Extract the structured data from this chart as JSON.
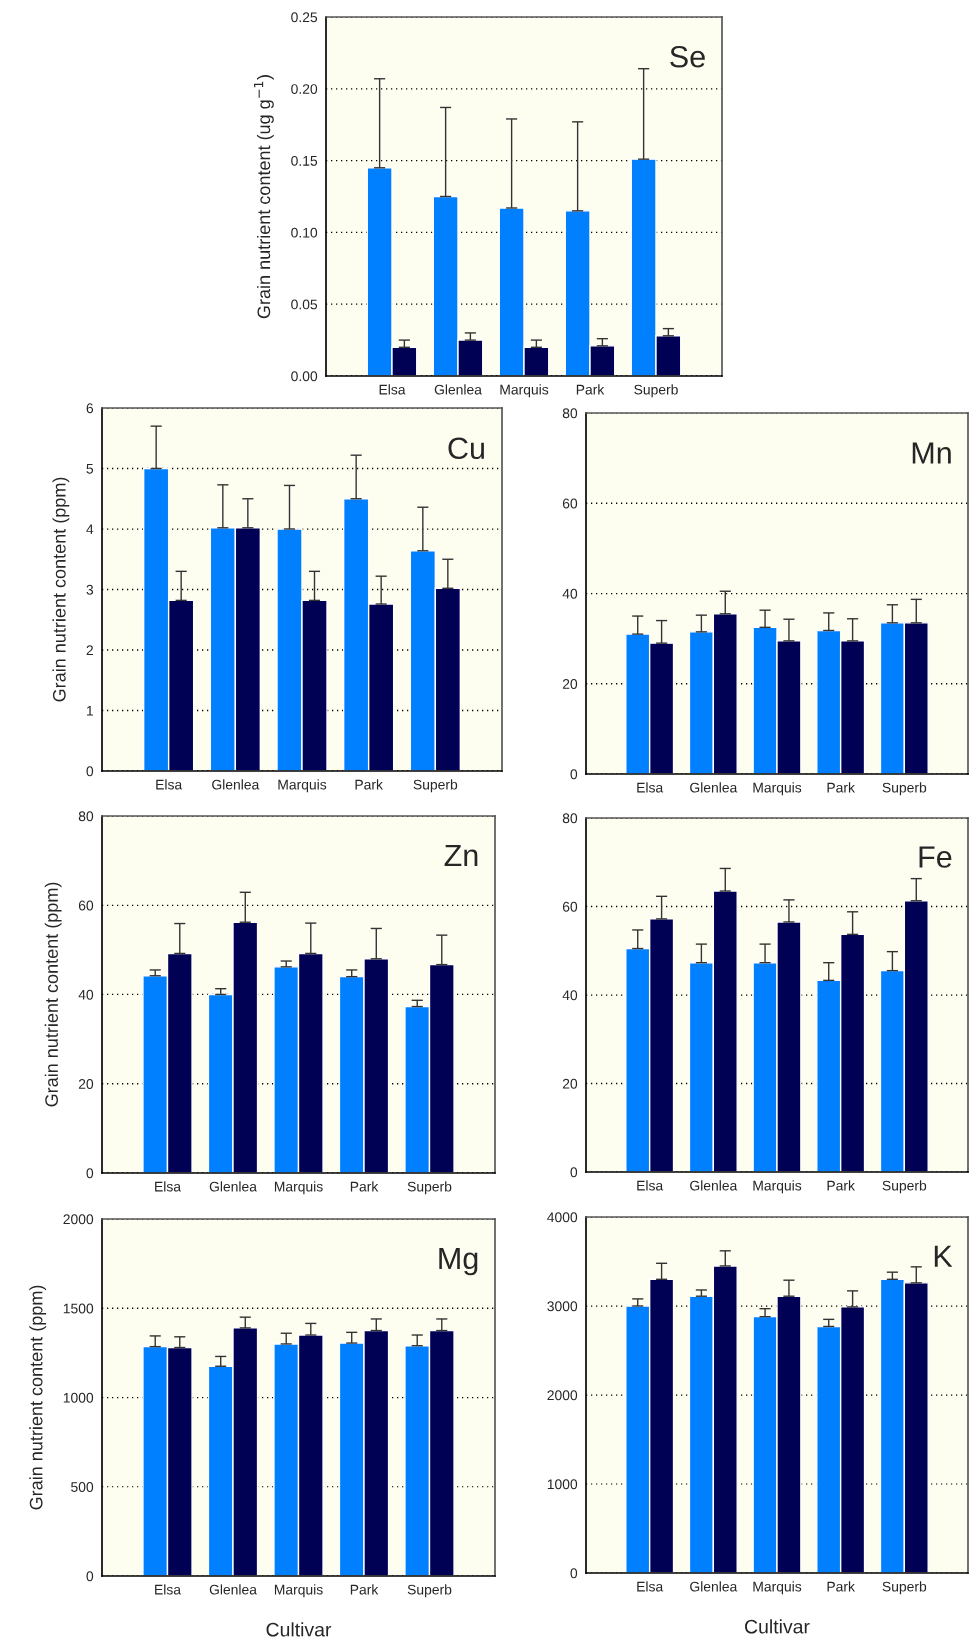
{
  "chart_data": [
    {
      "type": "bar",
      "title": "Se",
      "ylabel": "Grain nutrient content (ug g$^{−1}$)",
      "categories": [
        "Elsa",
        "Glenlea",
        "Marquis",
        "Park",
        "Superb"
      ],
      "series": [
        {
          "color": "#0080ff",
          "values": [
            0.145,
            0.125,
            0.117,
            0.115,
            0.151
          ],
          "errors": [
            [
              0.145,
              0.207
            ],
            [
              0.125,
              0.187
            ],
            [
              0.117,
              0.179
            ],
            [
              0.115,
              0.177
            ],
            [
              0.151,
              0.214
            ]
          ]
        },
        {
          "color": "#000055",
          "values": [
            0.02,
            0.025,
            0.02,
            0.021,
            0.028
          ],
          "errors": [
            [
              0.02,
              0.025
            ],
            [
              0.025,
              0.03
            ],
            [
              0.02,
              0.025
            ],
            [
              0.021,
              0.026
            ],
            [
              0.028,
              0.033
            ]
          ]
        }
      ],
      "ylim": [
        0,
        0.25
      ],
      "yticks": [
        {
          "value": 0,
          "label": "0.00"
        },
        {
          "value": 0.05,
          "label": "0.05"
        },
        {
          "value": 0.1,
          "label": "0.10"
        },
        {
          "value": 0.15,
          "label": "0.15"
        },
        {
          "value": 0.2,
          "label": "0.20"
        },
        {
          "value": 0.25,
          "label": "0.25"
        }
      ],
      "grid": "y",
      "legend": false
    },
    {
      "type": "bar",
      "title": "Cu",
      "ylabel": "Grain nutrient content (ppm)",
      "categories": [
        "Elsa",
        "Glenlea",
        "Marquis",
        "Park",
        "Superb"
      ],
      "series": [
        {
          "color": "#0080ff",
          "values": [
            5.0,
            4.02,
            4.0,
            4.5,
            3.64
          ],
          "errors": [
            [
              5.0,
              5.7
            ],
            [
              4.02,
              4.73
            ],
            [
              4.0,
              4.72
            ],
            [
              4.5,
              5.22
            ],
            [
              3.64,
              4.36
            ]
          ]
        },
        {
          "color": "#000055",
          "values": [
            2.82,
            4.02,
            2.82,
            2.76,
            3.02
          ],
          "errors": [
            [
              2.82,
              3.3
            ],
            [
              4.02,
              4.5
            ],
            [
              2.82,
              3.3
            ],
            [
              2.76,
              3.22
            ],
            [
              3.02,
              3.5
            ]
          ]
        }
      ],
      "ylim": [
        0,
        6
      ],
      "yticks": [
        0,
        1,
        2,
        3,
        4,
        5,
        6
      ],
      "grid": "y",
      "legend": false
    },
    {
      "type": "bar",
      "title": "Mn",
      "categories": [
        "Elsa",
        "Glenlea",
        "Marquis",
        "Park",
        "Superb"
      ],
      "series": [
        {
          "color": "#0080ff",
          "values": [
            31,
            31.5,
            32.5,
            31.8,
            33.5
          ],
          "errors": [
            [
              31,
              35
            ],
            [
              31.5,
              35.2
            ],
            [
              32.5,
              36.3
            ],
            [
              31.8,
              35.7
            ],
            [
              33.5,
              37.5
            ]
          ]
        },
        {
          "color": "#000055",
          "values": [
            29,
            35.5,
            29.5,
            29.5,
            33.5
          ],
          "errors": [
            [
              29,
              34
            ],
            [
              35.5,
              40.5
            ],
            [
              29.5,
              34.3
            ],
            [
              29.5,
              34.4
            ],
            [
              33.5,
              38.7
            ]
          ]
        }
      ],
      "ylim": [
        0,
        80
      ],
      "yticks": [
        0,
        20,
        40,
        60,
        80
      ],
      "grid": "y",
      "legend": false
    },
    {
      "type": "bar",
      "title": "Zn",
      "ylabel": "Grain nutrient content (ppm)",
      "categories": [
        "Elsa",
        "Glenlea",
        "Marquis",
        "Park",
        "Superb"
      ],
      "series": [
        {
          "color": "#0080ff",
          "values": [
            44.2,
            40,
            46.2,
            44,
            37.3
          ],
          "errors": [
            [
              44.2,
              45.5
            ],
            [
              40,
              41.3
            ],
            [
              46.2,
              47.5
            ],
            [
              44,
              45.5
            ],
            [
              37.3,
              38.7
            ]
          ]
        },
        {
          "color": "#000055",
          "values": [
            49.2,
            56.2,
            49.2,
            48,
            46.7
          ],
          "errors": [
            [
              49.2,
              55.9
            ],
            [
              56.2,
              62.9
            ],
            [
              49.2,
              56
            ],
            [
              48,
              54.8
            ],
            [
              46.7,
              53.3
            ]
          ]
        }
      ],
      "ylim": [
        0,
        80
      ],
      "yticks": [
        0,
        20,
        40,
        60,
        80
      ],
      "grid": "y",
      "legend": false
    },
    {
      "type": "bar",
      "title": "Fe",
      "categories": [
        "Elsa",
        "Glenlea",
        "Marquis",
        "Park",
        "Superb"
      ],
      "series": [
        {
          "color": "#0080ff",
          "values": [
            50.5,
            47.3,
            47.3,
            43.3,
            45.5
          ],
          "errors": [
            [
              50.5,
              54.7
            ],
            [
              47.3,
              51.5
            ],
            [
              47.3,
              51.5
            ],
            [
              43.3,
              47.3
            ],
            [
              45.5,
              49.8
            ]
          ]
        },
        {
          "color": "#000055",
          "values": [
            57.2,
            63.5,
            56.5,
            53.7,
            61.3
          ],
          "errors": [
            [
              57.2,
              62.3
            ],
            [
              63.5,
              68.6
            ],
            [
              56.5,
              61.5
            ],
            [
              53.7,
              58.8
            ],
            [
              61.3,
              66.3
            ]
          ]
        }
      ],
      "ylim": [
        0,
        80
      ],
      "yticks": [
        0,
        20,
        40,
        60,
        80
      ],
      "grid": "y",
      "legend": false
    },
    {
      "type": "bar",
      "title": "Mg",
      "ylabel": "Grain nutrient content (ppm)",
      "xlabel": "Cultivar",
      "categories": [
        "Elsa",
        "Glenlea",
        "Marquis",
        "Park",
        "Superb"
      ],
      "series": [
        {
          "color": "#0080ff",
          "values": [
            1285,
            1175,
            1300,
            1305,
            1290
          ],
          "errors": [
            [
              1285,
              1345
            ],
            [
              1175,
              1230
            ],
            [
              1300,
              1360
            ],
            [
              1305,
              1365
            ],
            [
              1290,
              1350
            ]
          ]
        },
        {
          "color": "#000055",
          "values": [
            1280,
            1390,
            1350,
            1375,
            1375
          ],
          "errors": [
            [
              1280,
              1340
            ],
            [
              1390,
              1450
            ],
            [
              1350,
              1415
            ],
            [
              1375,
              1440
            ],
            [
              1375,
              1440
            ]
          ]
        }
      ],
      "ylim": [
        0,
        2000
      ],
      "yticks": [
        0,
        500,
        1000,
        1500,
        2000
      ],
      "grid": "y",
      "legend": false
    },
    {
      "type": "bar",
      "title": "K",
      "xlabel": "Cultivar",
      "categories": [
        "Elsa",
        "Glenlea",
        "Marquis",
        "Park",
        "Superb"
      ],
      "series": [
        {
          "color": "#0080ff",
          "values": [
            3000,
            3110,
            2880,
            2770,
            3300
          ],
          "errors": [
            [
              3000,
              3080
            ],
            [
              3110,
              3180
            ],
            [
              2880,
              2970
            ],
            [
              2770,
              2850
            ],
            [
              3300,
              3380
            ]
          ]
        },
        {
          "color": "#000055",
          "values": [
            3300,
            3450,
            3110,
            2990,
            3260
          ],
          "errors": [
            [
              3300,
              3480
            ],
            [
              3450,
              3620
            ],
            [
              3110,
              3290
            ],
            [
              2990,
              3170
            ],
            [
              3260,
              3440
            ]
          ]
        }
      ],
      "ylim": [
        0,
        4000
      ],
      "yticks": [
        0,
        1000,
        2000,
        3000,
        4000
      ],
      "grid": "y",
      "legend": false
    }
  ]
}
